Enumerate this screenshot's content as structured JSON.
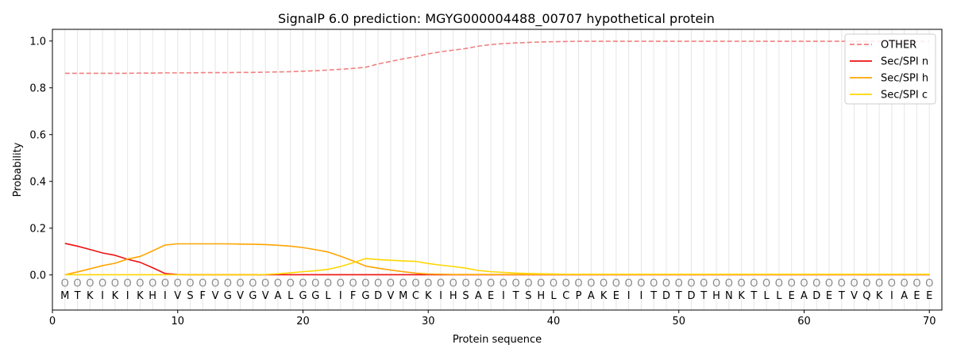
{
  "chart_data": {
    "type": "line",
    "title": "SignalP 6.0 prediction: MGYG000004488_00707 hypothetical protein",
    "xlabel": "Protein sequence",
    "ylabel": "Probability",
    "xlim": [
      0,
      71
    ],
    "ylim": [
      -0.15,
      1.05
    ],
    "xticks": [
      0,
      10,
      20,
      30,
      40,
      50,
      60,
      70
    ],
    "yticks": [
      0.0,
      0.2,
      0.4,
      0.6,
      0.8,
      1.0
    ],
    "ytick_labels": [
      "0.0",
      "0.2",
      "0.4",
      "0.6",
      "0.8",
      "1.0"
    ],
    "grid": "vertical lines at each residue",
    "legend_position": "top-right",
    "sequence": [
      "M",
      "T",
      "K",
      "I",
      "K",
      "I",
      "K",
      "H",
      "I",
      "V",
      "S",
      "F",
      "V",
      "G",
      "V",
      "G",
      "V",
      "A",
      "L",
      "G",
      "G",
      "L",
      "I",
      "F",
      "G",
      "D",
      "V",
      "M",
      "C",
      "K",
      "I",
      "H",
      "S",
      "A",
      "E",
      "I",
      "T",
      "S",
      "H",
      "L",
      "C",
      "P",
      "A",
      "K",
      "E",
      "I",
      "I",
      "T",
      "D",
      "T",
      "D",
      "T",
      "H",
      "N",
      "K",
      "T",
      "L",
      "L",
      "E",
      "A",
      "D",
      "E",
      "T",
      "V",
      "Q",
      "K",
      "I",
      "A",
      "E",
      "E"
    ],
    "region_marker": "O",
    "series": [
      {
        "name": "OTHER",
        "color": "#f08080",
        "dash": "dashed",
        "values": [
          0.862,
          0.862,
          0.862,
          0.862,
          0.862,
          0.862,
          0.863,
          0.863,
          0.864,
          0.864,
          0.864,
          0.865,
          0.865,
          0.865,
          0.866,
          0.866,
          0.867,
          0.868,
          0.869,
          0.871,
          0.873,
          0.876,
          0.879,
          0.883,
          0.888,
          0.902,
          0.913,
          0.924,
          0.933,
          0.945,
          0.954,
          0.961,
          0.968,
          0.978,
          0.985,
          0.989,
          0.992,
          0.994,
          0.996,
          0.997,
          0.998,
          0.999,
          0.999,
          0.999,
          0.999,
          0.999,
          0.999,
          0.999,
          0.999,
          0.999,
          0.999,
          0.999,
          0.999,
          0.999,
          0.999,
          0.999,
          0.999,
          0.999,
          0.999,
          0.999,
          0.999,
          0.999,
          0.999,
          0.999,
          0.999,
          0.999,
          0.999,
          0.999,
          0.999,
          0.999
        ]
      },
      {
        "name": "Sec/SPI n",
        "color": "#ee1111",
        "dash": "solid",
        "values": [
          0.135,
          0.123,
          0.109,
          0.094,
          0.084,
          0.067,
          0.054,
          0.031,
          0.006,
          0.002,
          0.001,
          0.001,
          0.001,
          0.001,
          0.001,
          0.001,
          0.001,
          0.001,
          0.001,
          0.001,
          0.001,
          0.001,
          0.001,
          0.001,
          0.001,
          0.001,
          0.001,
          0.001,
          0.001,
          0.001,
          0.001,
          0.001,
          0.001,
          0.001,
          0.001,
          0.001,
          0.001,
          0.001,
          0.001,
          0.001,
          0.001,
          0.001,
          0.001,
          0.001,
          0.001,
          0.001,
          0.001,
          0.001,
          0.001,
          0.001,
          0.001,
          0.001,
          0.001,
          0.001,
          0.001,
          0.001,
          0.001,
          0.001,
          0.001,
          0.001,
          0.001,
          0.001,
          0.001,
          0.001,
          0.001,
          0.001,
          0.001,
          0.001,
          0.001,
          0.001
        ]
      },
      {
        "name": "Sec/SPI h",
        "color": "#ffa500",
        "dash": "solid",
        "values": [
          0.001,
          0.013,
          0.026,
          0.04,
          0.05,
          0.068,
          0.079,
          0.103,
          0.128,
          0.133,
          0.133,
          0.133,
          0.133,
          0.133,
          0.132,
          0.131,
          0.13,
          0.127,
          0.123,
          0.117,
          0.108,
          0.098,
          0.08,
          0.06,
          0.038,
          0.029,
          0.021,
          0.014,
          0.008,
          0.004,
          0.003,
          0.002,
          0.002,
          0.002,
          0.002,
          0.002,
          0.002,
          0.002,
          0.002,
          0.002,
          0.002,
          0.002,
          0.002,
          0.002,
          0.002,
          0.002,
          0.002,
          0.002,
          0.002,
          0.002,
          0.002,
          0.002,
          0.002,
          0.002,
          0.002,
          0.002,
          0.002,
          0.002,
          0.002,
          0.002,
          0.002,
          0.002,
          0.002,
          0.002,
          0.002,
          0.002,
          0.002,
          0.002,
          0.002,
          0.002
        ]
      },
      {
        "name": "Sec/SPI c",
        "color": "#ffd700",
        "dash": "solid",
        "values": [
          0.001,
          0.001,
          0.001,
          0.001,
          0.001,
          0.001,
          0.001,
          0.001,
          0.001,
          0.001,
          0.001,
          0.001,
          0.001,
          0.001,
          0.001,
          0.001,
          0.002,
          0.005,
          0.009,
          0.014,
          0.018,
          0.024,
          0.036,
          0.052,
          0.07,
          0.066,
          0.063,
          0.06,
          0.058,
          0.049,
          0.042,
          0.036,
          0.029,
          0.019,
          0.014,
          0.011,
          0.008,
          0.006,
          0.005,
          0.004,
          0.003,
          0.003,
          0.003,
          0.003,
          0.003,
          0.003,
          0.003,
          0.003,
          0.003,
          0.003,
          0.003,
          0.003,
          0.003,
          0.003,
          0.003,
          0.003,
          0.003,
          0.003,
          0.003,
          0.003,
          0.003,
          0.003,
          0.003,
          0.003,
          0.003,
          0.003,
          0.003,
          0.003,
          0.003,
          0.003
        ]
      }
    ]
  }
}
